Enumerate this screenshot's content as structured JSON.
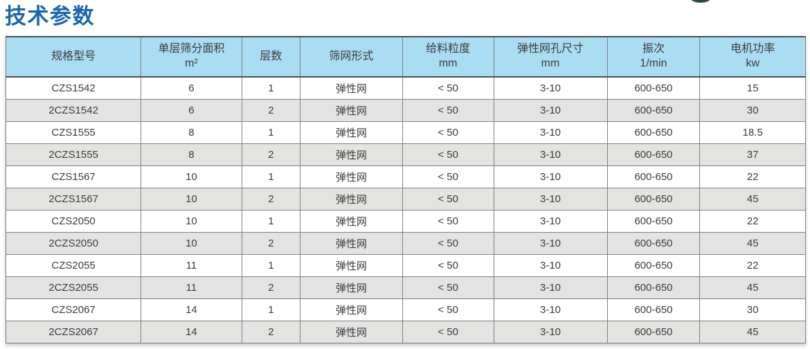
{
  "page": {
    "title": "技术参数"
  },
  "colors": {
    "title_blue": "#1b66ae",
    "header_bg": "#aadcf2",
    "row_alt_bg": "#e3e3e1",
    "border_gray": "#7f7f7f"
  },
  "table": {
    "columns": [
      {
        "label": "规格型号",
        "unit": ""
      },
      {
        "label": "单层筛分面积",
        "unit": "m²"
      },
      {
        "label": "层数",
        "unit": ""
      },
      {
        "label": "筛网形式",
        "unit": ""
      },
      {
        "label": "给料粒度",
        "unit": "mm"
      },
      {
        "label": "弹性网孔尺寸",
        "unit": "mm"
      },
      {
        "label": "振次",
        "unit": "1/min"
      },
      {
        "label": "电机功率",
        "unit": "kw"
      }
    ],
    "rows": [
      [
        "CZS1542",
        "6",
        "1",
        "弹性网",
        "< 50",
        "3-10",
        "600-650",
        "15"
      ],
      [
        "2CZS1542",
        "6",
        "2",
        "弹性网",
        "< 50",
        "3-10",
        "600-650",
        "30"
      ],
      [
        "CZS1555",
        "8",
        "1",
        "弹性网",
        "< 50",
        "3-10",
        "600-650",
        "18.5"
      ],
      [
        "2CZS1555",
        "8",
        "2",
        "弹性网",
        "< 50",
        "3-10",
        "600-650",
        "37"
      ],
      [
        "CZS1567",
        "10",
        "1",
        "弹性网",
        "< 50",
        "3-10",
        "600-650",
        "22"
      ],
      [
        "2CZS1567",
        "10",
        "2",
        "弹性网",
        "< 50",
        "3-10",
        "600-650",
        "45"
      ],
      [
        "CZS2050",
        "10",
        "1",
        "弹性网",
        "< 50",
        "3-10",
        "600-650",
        "22"
      ],
      [
        "2CZS2050",
        "10",
        "2",
        "弹性网",
        "< 50",
        "3-10",
        "600-650",
        "45"
      ],
      [
        "CZS2055",
        "11",
        "1",
        "弹性网",
        "< 50",
        "3-10",
        "600-650",
        "22"
      ],
      [
        "2CZS2055",
        "11",
        "2",
        "弹性网",
        "< 50",
        "3-10",
        "600-650",
        "45"
      ],
      [
        "CZS2067",
        "14",
        "1",
        "弹性网",
        "< 50",
        "3-10",
        "600-650",
        "30"
      ],
      [
        "2CZS2067",
        "14",
        "2",
        "弹性网",
        "< 50",
        "3-10",
        "600-650",
        "45"
      ]
    ]
  }
}
